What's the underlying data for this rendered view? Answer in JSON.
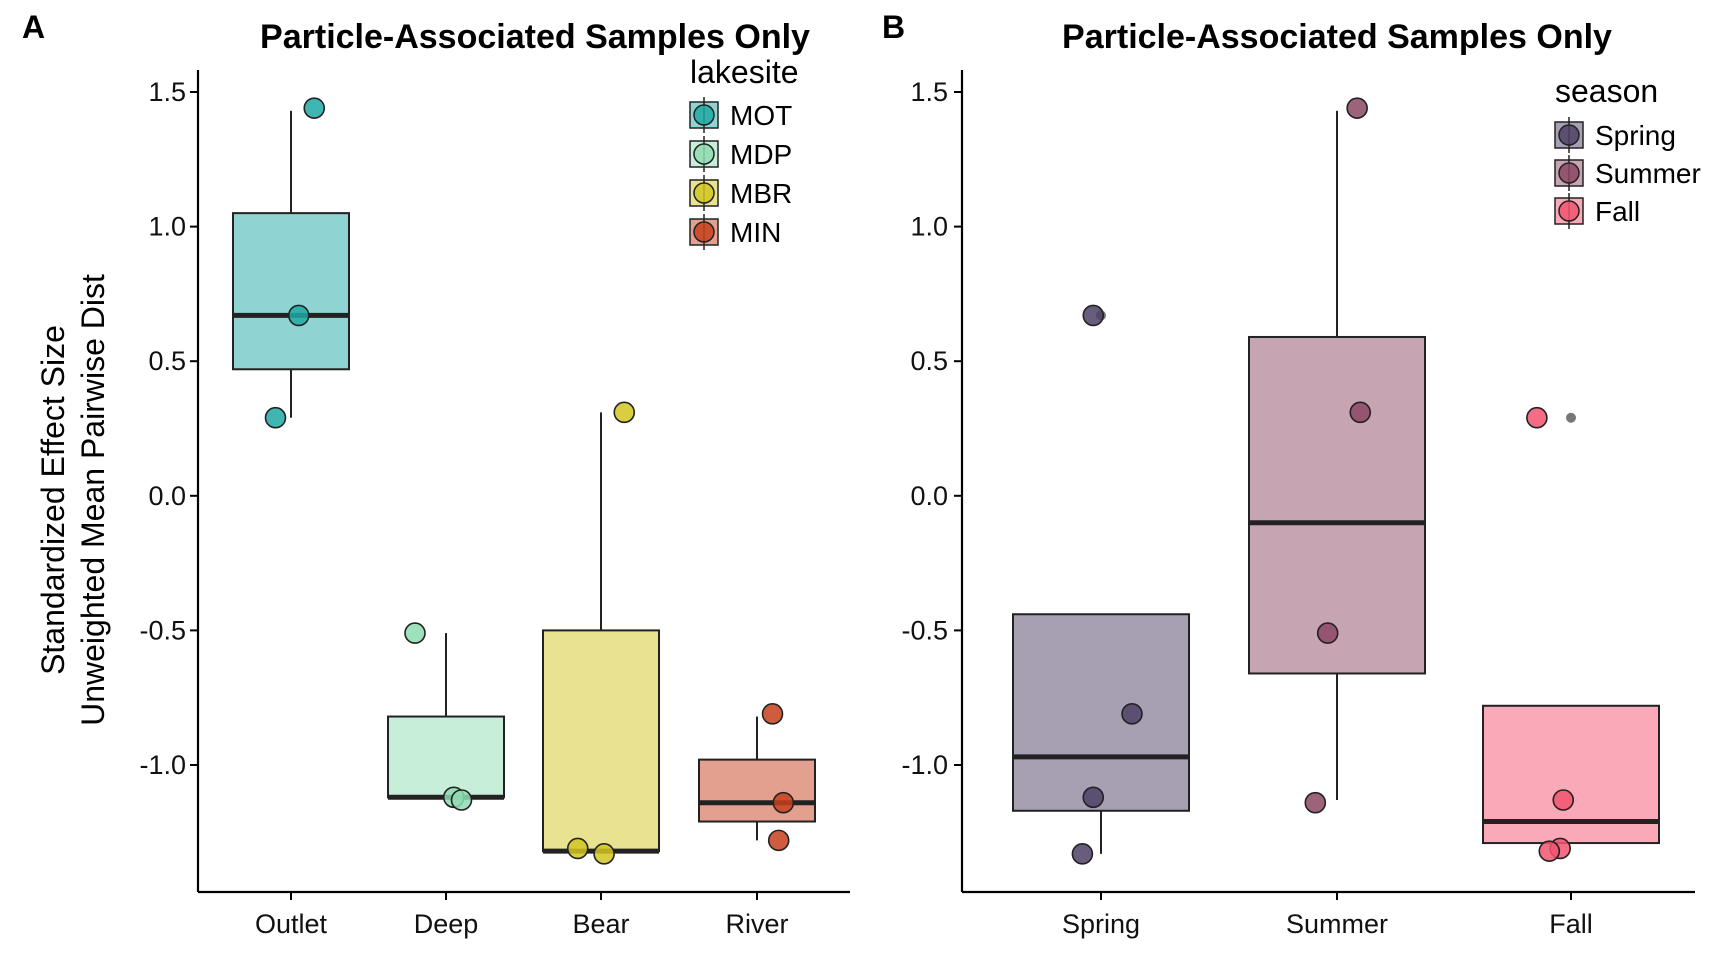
{
  "chart_data": [
    {
      "type": "box",
      "panel_label": "A",
      "title": "Particle-Associated Samples Only",
      "ylabel": [
        "Standardized Effect Size",
        "Unweighted Mean Pairwise Dist"
      ],
      "ylim": [
        -1.45,
        1.6
      ],
      "yticks": [
        1.5,
        1.0,
        0.5,
        0.0,
        -0.5,
        -1.0
      ],
      "ytick_labels": [
        "1.5",
        "1.0",
        "0.5",
        "0.0",
        "-0.5",
        "-1.0"
      ],
      "categories": [
        "Outlet",
        "Deep",
        "Bear",
        "River"
      ],
      "legend_title": "lakesite",
      "legend_position": "top-right",
      "grid": false,
      "groups": [
        {
          "category": "Outlet",
          "legend": "MOT",
          "color": "#1fa9a4",
          "box": {
            "q1": 0.47,
            "median": 0.67,
            "q3": 1.05,
            "whisker_low": 0.29,
            "whisker_high": 1.43
          },
          "points": [
            {
              "x": -0.1,
              "y": 0.29
            },
            {
              "x": 0.05,
              "y": 0.67
            },
            {
              "x": 0.15,
              "y": 1.44
            }
          ],
          "outliers": []
        },
        {
          "category": "Deep",
          "legend": "MDP",
          "color": "#8fdcb2",
          "box": {
            "q1": -1.12,
            "median": -1.12,
            "q3": -0.82,
            "whisker_low": -1.12,
            "whisker_high": -0.51
          },
          "points": [
            {
              "x": -0.2,
              "y": -0.51
            },
            {
              "x": 0.05,
              "y": -1.12
            },
            {
              "x": 0.1,
              "y": -1.13
            }
          ],
          "outliers": []
        },
        {
          "category": "Bear",
          "legend": "MBR",
          "color": "#d2c522",
          "box": {
            "q1": -1.32,
            "median": -1.32,
            "q3": -0.5,
            "whisker_low": -1.32,
            "whisker_high": 0.31
          },
          "points": [
            {
              "x": -0.15,
              "y": -1.31
            },
            {
              "x": 0.02,
              "y": -1.33
            },
            {
              "x": 0.15,
              "y": 0.31
            }
          ],
          "outliers": []
        },
        {
          "category": "River",
          "legend": "MIN",
          "color": "#c7401d",
          "box": {
            "q1": -1.21,
            "median": -1.14,
            "q3": -0.98,
            "whisker_low": -1.28,
            "whisker_high": -0.82
          },
          "points": [
            {
              "x": 0.1,
              "y": -0.81
            },
            {
              "x": 0.17,
              "y": -1.14
            },
            {
              "x": 0.14,
              "y": -1.28
            }
          ],
          "outliers": []
        }
      ]
    },
    {
      "type": "box",
      "panel_label": "B",
      "title": "Particle-Associated Samples Only",
      "ylim": [
        -1.45,
        1.6
      ],
      "yticks": [
        1.5,
        1.0,
        0.5,
        0.0,
        -0.5,
        -1.0
      ],
      "ytick_labels": [
        "1.5",
        "1.0",
        "0.5",
        "0.0",
        "-0.5",
        "-1.0"
      ],
      "categories": [
        "Spring",
        "Summer",
        "Fall"
      ],
      "legend_title": "season",
      "legend_position": "top-right",
      "grid": false,
      "groups": [
        {
          "category": "Spring",
          "legend": "Spring",
          "color": "#4e4166",
          "box": {
            "q1": -1.17,
            "median": -0.97,
            "q3": -0.44,
            "whisker_low": -1.33,
            "whisker_high": -0.44
          },
          "points": [
            {
              "x": -0.05,
              "y": 0.67
            },
            {
              "x": 0.2,
              "y": -0.81
            },
            {
              "x": -0.05,
              "y": -1.12
            },
            {
              "x": -0.12,
              "y": -1.33
            }
          ],
          "outliers": [
            0.67
          ]
        },
        {
          "category": "Summer",
          "legend": "Summer",
          "color": "#8c4864",
          "box": {
            "q1": -0.66,
            "median": -0.1,
            "q3": 0.59,
            "whisker_low": -1.13,
            "whisker_high": 1.43
          },
          "points": [
            {
              "x": 0.13,
              "y": 1.44
            },
            {
              "x": 0.15,
              "y": 0.31
            },
            {
              "x": -0.06,
              "y": -0.51
            },
            {
              "x": -0.14,
              "y": -1.14
            }
          ],
          "outliers": []
        },
        {
          "category": "Fall",
          "legend": "Fall",
          "color": "#f2536e",
          "box": {
            "q1": -1.29,
            "median": -1.21,
            "q3": -0.78,
            "whisker_low": -1.29,
            "whisker_high": -0.78
          },
          "points": [
            {
              "x": -0.22,
              "y": 0.29
            },
            {
              "x": -0.05,
              "y": -1.13
            },
            {
              "x": -0.07,
              "y": -1.31
            },
            {
              "x": -0.14,
              "y": -1.32
            }
          ],
          "outliers": [
            0.29
          ]
        }
      ]
    }
  ]
}
